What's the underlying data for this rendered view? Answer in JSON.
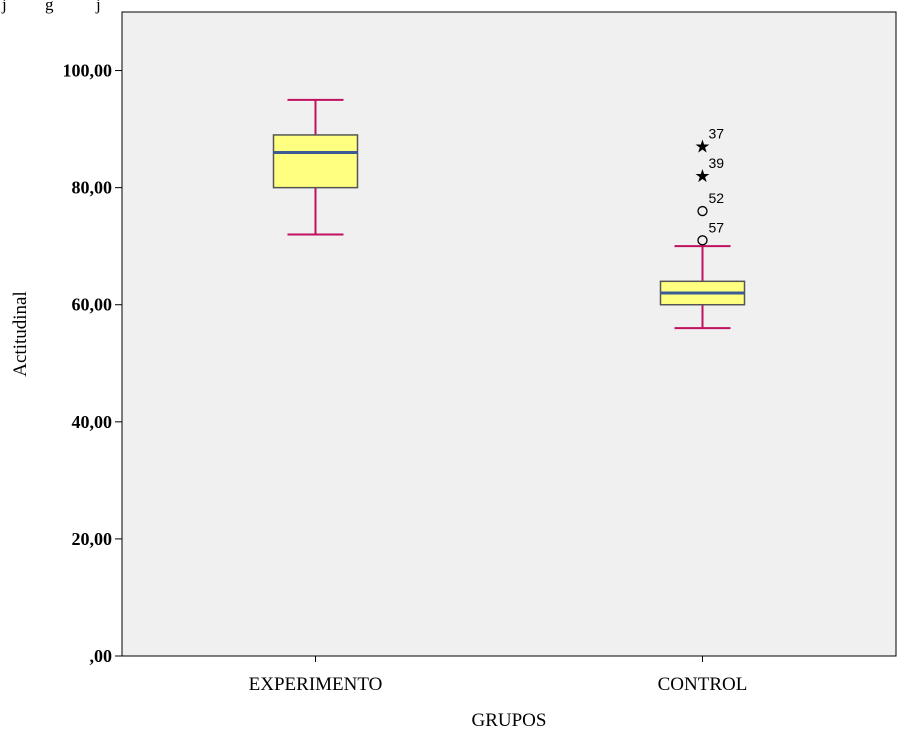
{
  "caption_fragment": "j         g          j",
  "chart_data": {
    "type": "boxplot",
    "xlabel": "GRUPOS",
    "ylabel": "Actitudinal",
    "ylim": [
      0,
      110
    ],
    "yticks": [
      0,
      20,
      40,
      60,
      80,
      100
    ],
    "ytick_labels": [
      ",00",
      "20,00",
      "40,00",
      "60,00",
      "80,00",
      "100,00"
    ],
    "categories": [
      "EXPERIMENTO",
      "CONTROL"
    ],
    "boxes": [
      {
        "category": "EXPERIMENTO",
        "whisker_low": 72,
        "q1": 80,
        "median": 86,
        "q3": 89,
        "whisker_high": 95,
        "outliers": []
      },
      {
        "category": "CONTROL",
        "whisker_low": 56,
        "q1": 60,
        "median": 62,
        "q3": 64,
        "whisker_high": 70,
        "outliers": [
          {
            "value": 87,
            "label": "37",
            "marker": "star"
          },
          {
            "value": 82,
            "label": "39",
            "marker": "star"
          },
          {
            "value": 76,
            "label": "52",
            "marker": "circle"
          },
          {
            "value": 71,
            "label": "57",
            "marker": "circle"
          }
        ]
      }
    ],
    "grid": false,
    "colors": {
      "background": "#f0f0f0",
      "box_fill": "#ffff80",
      "median": "#3c5a96",
      "whisker": "#c01060",
      "box_edge": "#555555"
    }
  }
}
